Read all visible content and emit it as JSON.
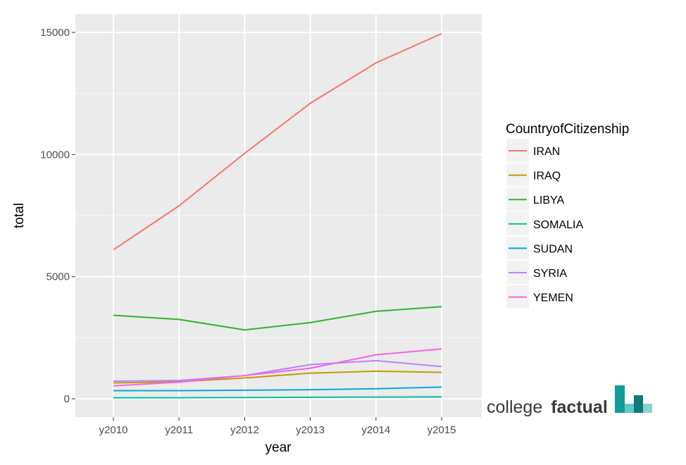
{
  "chart_data": {
    "type": "line",
    "xlabel": "year",
    "ylabel": "total",
    "categories": [
      "y2010",
      "y2011",
      "y2012",
      "y2013",
      "y2014",
      "y2015"
    ],
    "ylim": [
      -750,
      15750
    ],
    "yticks": [
      0,
      5000,
      10000,
      15000
    ],
    "ytick_labels": [
      "0",
      "5000",
      "10000",
      "15000"
    ],
    "grid": true,
    "legend": {
      "title": "CountryofCitizenship",
      "position": "right"
    },
    "series": [
      {
        "name": "IRAN",
        "color": "#F8766D",
        "values": [
          6100,
          7900,
          10050,
          12100,
          13750,
          14950
        ]
      },
      {
        "name": "IRAQ",
        "color": "#C49A00",
        "values": [
          650,
          700,
          850,
          1050,
          1130,
          1080
        ]
      },
      {
        "name": "LIBYA",
        "color": "#2DB52D",
        "values": [
          3420,
          3250,
          2820,
          3120,
          3580,
          3770
        ]
      },
      {
        "name": "SOMALIA",
        "color": "#00C19A",
        "values": [
          40,
          45,
          50,
          60,
          70,
          80
        ]
      },
      {
        "name": "SUDAN",
        "color": "#00A9E0",
        "values": [
          330,
          330,
          350,
          370,
          410,
          480
        ]
      },
      {
        "name": "SYRIA",
        "color": "#B983FF",
        "values": [
          720,
          750,
          950,
          1400,
          1560,
          1320
        ]
      },
      {
        "name": "YEMEN",
        "color": "#F564E3",
        "values": [
          530,
          680,
          950,
          1250,
          1800,
          2040
        ]
      }
    ]
  },
  "watermark": {
    "word1": "college",
    "word2": "factual"
  }
}
